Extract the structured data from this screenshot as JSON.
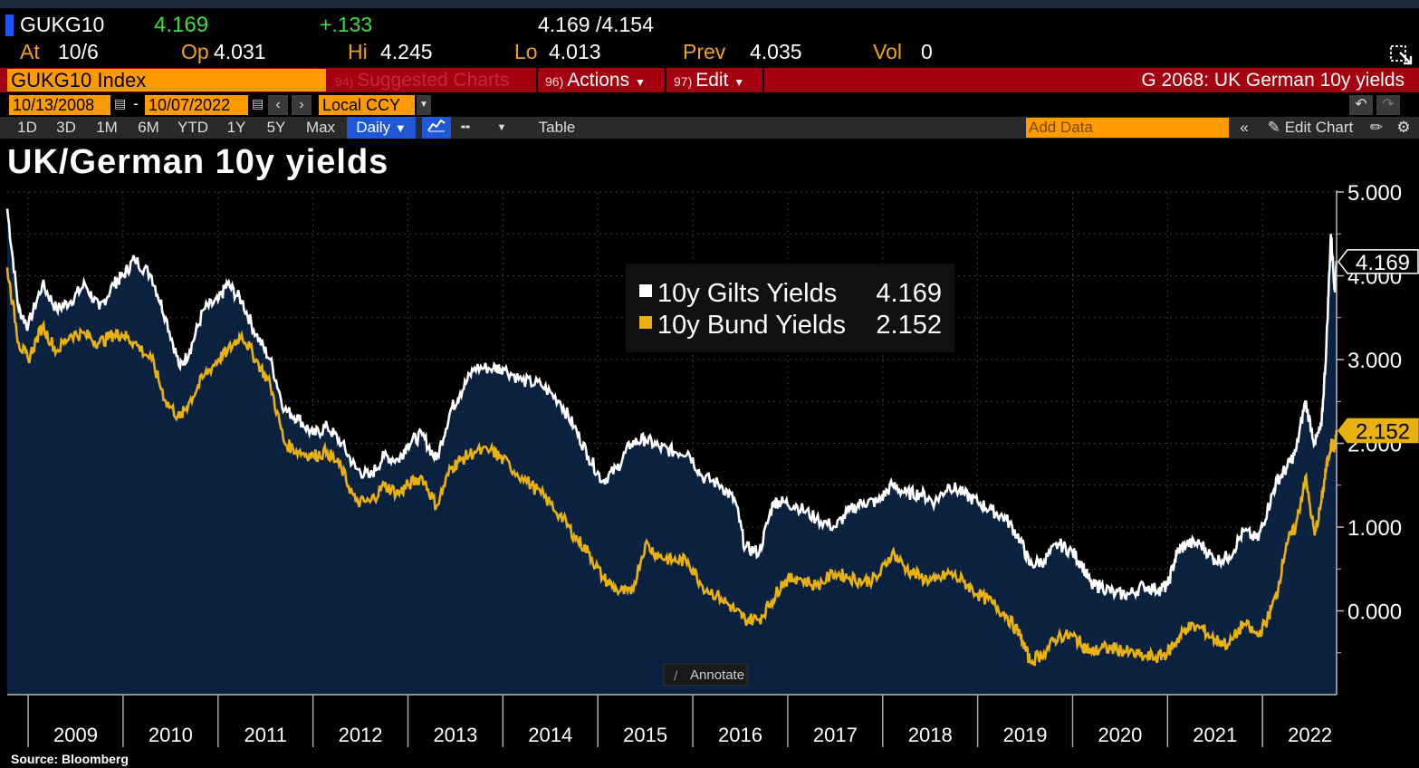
{
  "header": {
    "ticker": "GUKG10",
    "last": "4.169",
    "change": "+.133",
    "bid_ask": "4.169 /4.154",
    "at_label": "At",
    "at_date": "10/6",
    "open_label": "Op",
    "open": "4.031",
    "high_label": "Hi",
    "high": "4.245",
    "low_label": "Lo",
    "low": "4.013",
    "prev_label": "Prev",
    "prev": "4.035",
    "vol_label": "Vol",
    "vol": "0"
  },
  "menu": {
    "index": "GUKG10 Index",
    "suggested_num": "94)",
    "suggested": "Suggested Charts",
    "actions_num": "96)",
    "actions": "Actions",
    "edit_num": "97)",
    "edit": "Edit",
    "graph_title": "G 2068: UK German 10y yields"
  },
  "date_range": {
    "start": "10/13/2008",
    "dash": "-",
    "end": "10/07/2022",
    "currency": "Local CCY"
  },
  "toolbar": {
    "periods": [
      "1D",
      "3D",
      "1M",
      "6M",
      "YTD",
      "1Y",
      "5Y",
      "Max"
    ],
    "frequency": "Daily",
    "table": "Table",
    "add_data_placeholder": "Add Data",
    "edit_chart": "Edit Chart"
  },
  "chart_title": "UK/German 10y yields",
  "annotate": "Annotate",
  "source": "Source:  Bloomberg",
  "colors": {
    "gilts": "#ffffff",
    "bund": "#e8b10e",
    "area": "#0b2140",
    "menu_red": "#a5000f",
    "orange": "#ff9a00"
  },
  "chart_data": {
    "type": "line",
    "title": "UK/German 10y yields",
    "xlabel": "",
    "ylabel": "",
    "ylim": [
      -1.0,
      5.0
    ],
    "yticks": [
      "5.000",
      "4.000",
      "3.000",
      "2.000",
      "1.000",
      "0.000"
    ],
    "ytick_values": [
      5,
      4,
      3,
      2,
      1,
      0
    ],
    "xlim": [
      2008.78,
      2022.78
    ],
    "xticks": [
      "2009",
      "2010",
      "2011",
      "2012",
      "2013",
      "2014",
      "2015",
      "2016",
      "2017",
      "2018",
      "2019",
      "2020",
      "2021",
      "2022"
    ],
    "legend_position": "top-center",
    "last_values": {
      "gilts": "4.169",
      "bund": "2.152"
    },
    "series": [
      {
        "name": "10y Gilts Yields",
        "last": "4.169",
        "color": "#ffffff",
        "x": [
          2008.78,
          2008.9,
          2009.0,
          2009.15,
          2009.3,
          2009.45,
          2009.6,
          2009.75,
          2009.9,
          2010.0,
          2010.12,
          2010.3,
          2010.45,
          2010.6,
          2010.7,
          2010.85,
          2011.0,
          2011.1,
          2011.25,
          2011.4,
          2011.55,
          2011.7,
          2011.85,
          2012.0,
          2012.15,
          2012.3,
          2012.45,
          2012.6,
          2012.75,
          2012.9,
          2013.0,
          2013.15,
          2013.3,
          2013.45,
          2013.55,
          2013.7,
          2013.9,
          2014.0,
          2014.2,
          2014.4,
          2014.6,
          2014.75,
          2014.9,
          2015.05,
          2015.2,
          2015.35,
          2015.5,
          2015.65,
          2015.8,
          2015.95,
          2016.1,
          2016.3,
          2016.45,
          2016.55,
          2016.7,
          2016.85,
          2016.95,
          2017.1,
          2017.3,
          2017.5,
          2017.65,
          2017.8,
          2017.95,
          2018.1,
          2018.25,
          2018.4,
          2018.55,
          2018.7,
          2018.85,
          2019.0,
          2019.15,
          2019.3,
          2019.45,
          2019.55,
          2019.7,
          2019.85,
          2020.0,
          2020.1,
          2020.2,
          2020.3,
          2020.45,
          2020.6,
          2020.75,
          2020.9,
          2021.0,
          2021.1,
          2021.2,
          2021.35,
          2021.5,
          2021.65,
          2021.8,
          2021.95,
          2022.05,
          2022.15,
          2022.25,
          2022.35,
          2022.45,
          2022.55,
          2022.62,
          2022.67,
          2022.72,
          2022.76,
          2022.78
        ],
        "values": [
          4.8,
          3.6,
          3.4,
          3.9,
          3.6,
          3.7,
          3.9,
          3.6,
          3.9,
          4.0,
          4.2,
          4.0,
          3.5,
          2.9,
          3.1,
          3.6,
          3.7,
          3.9,
          3.7,
          3.3,
          3.0,
          2.4,
          2.3,
          2.1,
          2.2,
          2.0,
          1.7,
          1.6,
          1.85,
          1.8,
          2.0,
          2.1,
          1.8,
          2.4,
          2.6,
          2.9,
          2.9,
          2.9,
          2.75,
          2.7,
          2.5,
          2.2,
          1.85,
          1.55,
          1.7,
          2.0,
          2.05,
          1.95,
          1.9,
          1.9,
          1.6,
          1.5,
          1.3,
          0.75,
          0.7,
          1.3,
          1.3,
          1.25,
          1.1,
          1.0,
          1.2,
          1.3,
          1.3,
          1.5,
          1.4,
          1.4,
          1.3,
          1.5,
          1.4,
          1.3,
          1.2,
          1.1,
          0.85,
          0.55,
          0.6,
          0.8,
          0.7,
          0.55,
          0.3,
          0.3,
          0.2,
          0.2,
          0.3,
          0.25,
          0.3,
          0.7,
          0.8,
          0.8,
          0.6,
          0.65,
          0.95,
          0.85,
          1.2,
          1.55,
          1.7,
          1.9,
          2.5,
          2.0,
          2.2,
          3.1,
          4.5,
          3.85,
          4.169
        ]
      },
      {
        "name": "10y Bund Yields",
        "last": "2.152",
        "color": "#e8b10e",
        "x": [
          2008.78,
          2008.9,
          2009.0,
          2009.15,
          2009.3,
          2009.45,
          2009.6,
          2009.75,
          2009.9,
          2010.0,
          2010.12,
          2010.3,
          2010.45,
          2010.6,
          2010.7,
          2010.85,
          2011.0,
          2011.1,
          2011.25,
          2011.4,
          2011.55,
          2011.7,
          2011.85,
          2012.0,
          2012.15,
          2012.3,
          2012.45,
          2012.6,
          2012.75,
          2012.9,
          2013.0,
          2013.15,
          2013.3,
          2013.45,
          2013.55,
          2013.7,
          2013.9,
          2014.0,
          2014.2,
          2014.4,
          2014.6,
          2014.75,
          2014.9,
          2015.05,
          2015.2,
          2015.35,
          2015.5,
          2015.65,
          2015.8,
          2015.95,
          2016.1,
          2016.3,
          2016.45,
          2016.55,
          2016.7,
          2016.85,
          2016.95,
          2017.1,
          2017.3,
          2017.5,
          2017.65,
          2017.8,
          2017.95,
          2018.1,
          2018.25,
          2018.4,
          2018.55,
          2018.7,
          2018.85,
          2019.0,
          2019.15,
          2019.3,
          2019.45,
          2019.55,
          2019.7,
          2019.85,
          2020.0,
          2020.1,
          2020.2,
          2020.3,
          2020.45,
          2020.6,
          2020.75,
          2020.9,
          2021.0,
          2021.1,
          2021.2,
          2021.35,
          2021.5,
          2021.65,
          2021.8,
          2021.95,
          2022.05,
          2022.15,
          2022.25,
          2022.35,
          2022.45,
          2022.55,
          2022.62,
          2022.67,
          2022.72,
          2022.76,
          2022.78
        ],
        "values": [
          4.1,
          3.2,
          3.0,
          3.4,
          3.1,
          3.3,
          3.3,
          3.2,
          3.3,
          3.3,
          3.2,
          3.0,
          2.5,
          2.3,
          2.5,
          2.8,
          3.0,
          3.1,
          3.3,
          3.0,
          2.7,
          2.0,
          1.9,
          1.85,
          1.9,
          1.7,
          1.3,
          1.3,
          1.5,
          1.4,
          1.5,
          1.6,
          1.25,
          1.7,
          1.8,
          1.9,
          1.9,
          1.8,
          1.6,
          1.4,
          1.15,
          0.9,
          0.7,
          0.4,
          0.25,
          0.2,
          0.8,
          0.65,
          0.6,
          0.6,
          0.3,
          0.15,
          0.0,
          -0.1,
          -0.1,
          0.15,
          0.35,
          0.4,
          0.3,
          0.45,
          0.4,
          0.35,
          0.4,
          0.7,
          0.5,
          0.4,
          0.35,
          0.45,
          0.35,
          0.2,
          0.1,
          -0.05,
          -0.3,
          -0.6,
          -0.5,
          -0.3,
          -0.3,
          -0.4,
          -0.5,
          -0.45,
          -0.45,
          -0.5,
          -0.55,
          -0.55,
          -0.5,
          -0.35,
          -0.2,
          -0.2,
          -0.35,
          -0.4,
          -0.15,
          -0.3,
          -0.1,
          0.2,
          0.8,
          1.0,
          1.6,
          0.9,
          1.3,
          1.7,
          2.0,
          1.95,
          2.152
        ]
      }
    ]
  }
}
